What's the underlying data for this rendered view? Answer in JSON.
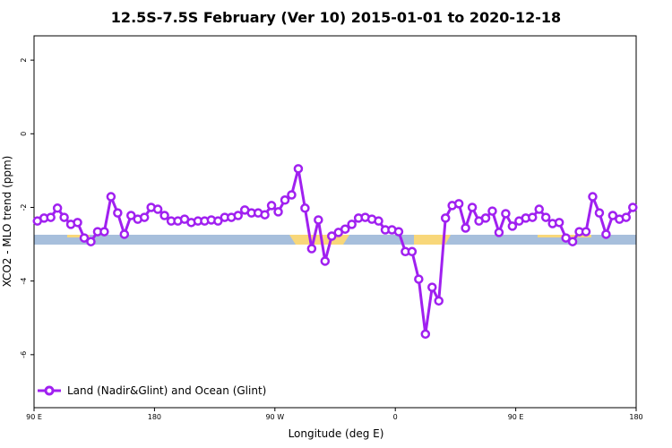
{
  "chart_data": {
    "type": "line",
    "title": "12.5S-7.5S February (Ver 10)   2015-01-01 to 2020-12-18",
    "xlabel": "Longitude (deg E)",
    "ylabel": "XCO2 - MLO trend (ppm)",
    "xlim": [
      90,
      540
    ],
    "ylim": [
      -7.44,
      2.66
    ],
    "xticks": [
      {
        "value": 90,
        "label": "90 E"
      },
      180,
      {
        "value": 270,
        "label": "90 W"
      },
      {
        "value": 360,
        "label": "0"
      },
      {
        "value": 450,
        "label": "90 E"
      },
      {
        "value": 540,
        "label": "180"
      }
    ],
    "yticks": [
      2,
      0,
      -2,
      -4,
      -6
    ],
    "legend": "bottom-left",
    "x": [
      92.5,
      97.5,
      102.5,
      107.5,
      112.5,
      117.5,
      122.5,
      127.5,
      132.5,
      137.5,
      142.5,
      147.5,
      152.5,
      157.5,
      162.5,
      167.5,
      172.5,
      177.5,
      182.5,
      187.5,
      192.5,
      197.5,
      202.5,
      207.5,
      212.5,
      217.5,
      222.5,
      227.5,
      232.5,
      237.5,
      242.5,
      247.5,
      252.5,
      257.5,
      262.5,
      267.5,
      272.5,
      277.5,
      282.5,
      287.5,
      292.5,
      297.5,
      302.5,
      307.5,
      312.5,
      317.5,
      322.5,
      327.5,
      332.5,
      337.5,
      342.5,
      347.5,
      352.5,
      357.5,
      362.5,
      367.5,
      372.5,
      377.5,
      382.5,
      387.5,
      392.5,
      397.5,
      402.5,
      407.5,
      412.5,
      417.5,
      422.5,
      427.5,
      432.5,
      437.5,
      442.5,
      447.5,
      452.5,
      457.5,
      462.5,
      467.5,
      472.5,
      477.5,
      482.5,
      487.5,
      492.5,
      497.5,
      502.5,
      507.5,
      512.5,
      517.5,
      522.5,
      527.5,
      532.5,
      537.5
    ],
    "series": [
      {
        "name": "Land (Nadir&Glint) and Ocean (Glint)",
        "color": "#a020f0",
        "values": [
          -2.37,
          -2.29,
          -2.27,
          -2.02,
          -2.27,
          -2.46,
          -2.41,
          -2.83,
          -2.93,
          -2.66,
          -2.66,
          -1.71,
          -2.15,
          -2.73,
          -2.22,
          -2.32,
          -2.27,
          -2.0,
          -2.05,
          -2.22,
          -2.37,
          -2.37,
          -2.32,
          -2.41,
          -2.37,
          -2.37,
          -2.34,
          -2.37,
          -2.27,
          -2.27,
          -2.22,
          -2.07,
          -2.15,
          -2.15,
          -2.2,
          -1.95,
          -2.12,
          -1.8,
          -1.66,
          -0.95,
          -2.02,
          -3.12,
          -2.34,
          -3.46,
          -2.78,
          -2.68,
          -2.59,
          -2.46,
          -2.29,
          -2.27,
          -2.32,
          -2.37,
          -2.61,
          -2.61,
          -2.66,
          -3.2,
          -3.2,
          -3.95,
          -5.44,
          -4.17,
          -4.54,
          -2.29,
          -1.95,
          -1.9,
          -2.56,
          -2.0,
          -2.37,
          -2.29,
          -2.1,
          -2.68,
          -2.17,
          -2.51,
          -2.37,
          -2.29,
          -2.27,
          -2.05,
          -2.27,
          -2.44,
          -2.41,
          -2.83,
          -2.93,
          -2.66,
          -2.66,
          -1.71,
          -2.15,
          -2.73,
          -2.22,
          -2.32,
          -2.27,
          -2.0
        ]
      }
    ]
  }
}
